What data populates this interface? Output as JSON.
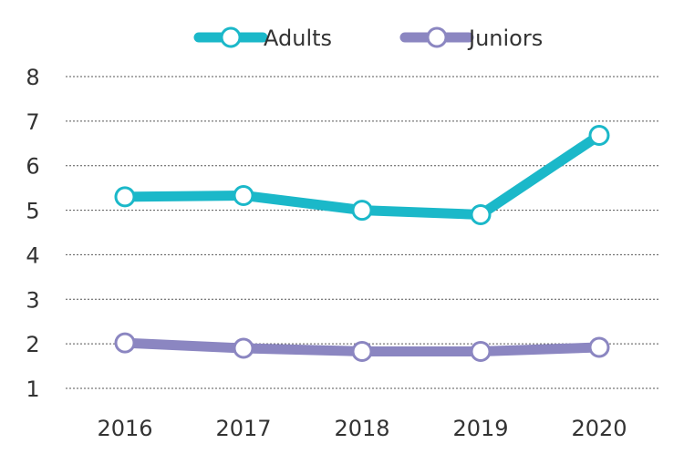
{
  "chart_data": {
    "type": "line",
    "title": "",
    "xlabel": "",
    "ylabel": "",
    "categories": [
      "2016",
      "2017",
      "2018",
      "2019",
      "2020"
    ],
    "series": [
      {
        "name": "Adults",
        "color": "#1bb8c9",
        "values": [
          5.3,
          5.33,
          5.0,
          4.9,
          6.68
        ]
      },
      {
        "name": "Juniors",
        "color": "#8b86c1",
        "values": [
          2.02,
          1.9,
          1.83,
          1.83,
          1.92
        ]
      }
    ],
    "ylim": [
      1,
      8
    ],
    "yticks": [
      "1",
      "2",
      "3",
      "4",
      "5",
      "6",
      "7",
      "8"
    ],
    "grid": true,
    "grid_style": "dotted",
    "legend_position": "top-center",
    "marker": "hollow-circle"
  }
}
